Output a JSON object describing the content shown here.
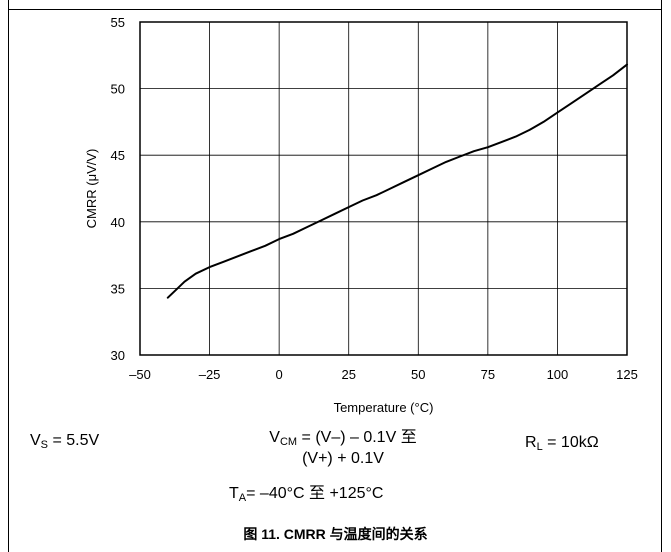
{
  "chart_data": {
    "type": "line",
    "xlabel": "Temperature (°C)",
    "ylabel": "CMRR (μV/V)",
    "xlim": [
      -50,
      125
    ],
    "ylim": [
      30,
      55
    ],
    "xticks": [
      -50,
      -25,
      0,
      25,
      50,
      75,
      100,
      125
    ],
    "yticks": [
      30,
      35,
      40,
      45,
      50,
      55
    ],
    "xtick_labels": [
      "–50",
      "–25",
      "0",
      "25",
      "50",
      "75",
      "100",
      "125"
    ],
    "ytick_labels": [
      "30",
      "35",
      "40",
      "45",
      "50",
      "55"
    ],
    "grid": true,
    "series": [
      {
        "color": "#000000",
        "x": [
          -40,
          -37,
          -34,
          -30,
          -25,
          -20,
          -15,
          -10,
          -5,
          0,
          5,
          10,
          15,
          20,
          25,
          30,
          35,
          40,
          45,
          50,
          55,
          60,
          65,
          70,
          75,
          80,
          85,
          90,
          95,
          100,
          105,
          110,
          115,
          120,
          125
        ],
        "y": [
          34.3,
          34.9,
          35.5,
          36.1,
          36.6,
          37.0,
          37.4,
          37.8,
          38.2,
          38.7,
          39.1,
          39.6,
          40.1,
          40.6,
          41.1,
          41.6,
          42.0,
          42.5,
          43.0,
          43.5,
          44.0,
          44.5,
          44.9,
          45.3,
          45.6,
          46.0,
          46.4,
          46.9,
          47.5,
          48.2,
          48.9,
          49.6,
          50.3,
          51.0,
          51.8
        ]
      }
    ]
  },
  "conditions": {
    "vs_main": "V",
    "vs_sub": "S",
    "vs_value": " = 5.5V",
    "vcm_main": "V",
    "vcm_sub": "CM",
    "vcm_line1_rest": " = (V–) – 0.1V 至",
    "vcm_line2": "(V+) + 0.1V",
    "rl_main": "R",
    "rl_sub": "L",
    "rl_value": " = 10kΩ",
    "ta_main": "T",
    "ta_sub": "A",
    "ta_value": "= –40°C 至 +125°C"
  },
  "caption": "图 11. CMRR 与温度间的关系"
}
